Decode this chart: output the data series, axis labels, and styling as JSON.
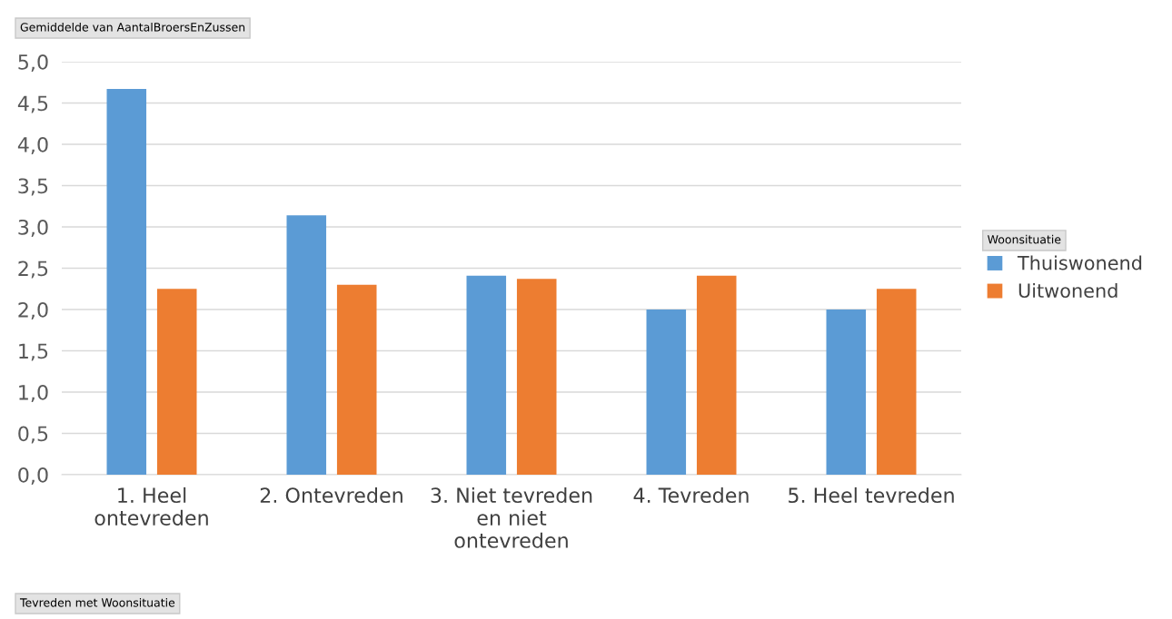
{
  "chart_data": {
    "type": "bar",
    "ylabel": "Gemiddelde van AantalBroersEnZussen",
    "xlabel": "Tevreden met Woonsituatie",
    "legend_title": "Woonsituatie",
    "categories": [
      "1. Heel ontevreden",
      "2. Ontevreden",
      "3. Niet tevreden en niet ontevreden",
      "4. Tevreden",
      "5. Heel tevreden"
    ],
    "series": [
      {
        "name": "Thuiswonend",
        "color": "#5b9bd5",
        "values": [
          4.67,
          3.14,
          2.41,
          2.0,
          2.0
        ]
      },
      {
        "name": "Uitwonend",
        "color": "#ed7d31",
        "values": [
          2.25,
          2.3,
          2.37,
          2.41,
          2.25
        ]
      }
    ],
    "ylim": [
      0,
      5
    ],
    "yticks": [
      {
        "value": 0,
        "label": "0,0"
      },
      {
        "value": 0.5,
        "label": "0,5"
      },
      {
        "value": 1,
        "label": "1,0"
      },
      {
        "value": 1.5,
        "label": "1,5"
      },
      {
        "value": 2,
        "label": "2,0"
      },
      {
        "value": 2.5,
        "label": "2,5"
      },
      {
        "value": 3,
        "label": "3,0"
      },
      {
        "value": 3.5,
        "label": "3,5"
      },
      {
        "value": 4,
        "label": "4,0"
      },
      {
        "value": 4.5,
        "label": "4,5"
      },
      {
        "value": 5,
        "label": "5,0"
      }
    ],
    "grid": "y",
    "legend": "right"
  }
}
